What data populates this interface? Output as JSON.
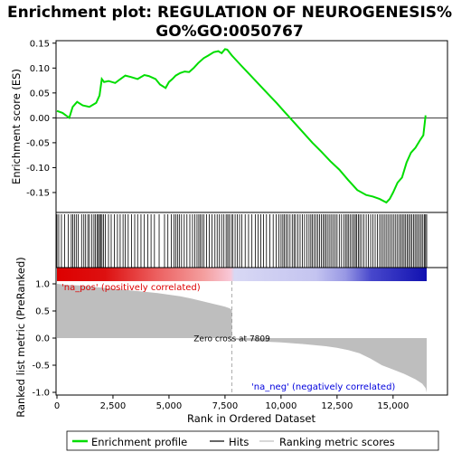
{
  "chart_data": {
    "type": "line",
    "title_line1": "Enrichment plot: REGULATION OF NEUROGENESIS%",
    "title_line2": "GO%GO:0050767",
    "top_panel": {
      "ylabel": "Enrichment score (ES)",
      "ylim": [
        -0.19,
        0.155
      ],
      "yticks": [
        -0.15,
        -0.1,
        -0.05,
        0.0,
        0.05,
        0.1,
        0.15
      ],
      "ytick_labels": [
        "-0.15",
        "-0.10",
        "-0.05",
        "0.00",
        "0.05",
        "0.10",
        "0.15"
      ],
      "line_color": "#00dd00",
      "es_profile": {
        "x": [
          0,
          250,
          550,
          700,
          900,
          1150,
          1450,
          1750,
          1900,
          2000,
          2100,
          2300,
          2600,
          2800,
          3050,
          3300,
          3600,
          3900,
          4100,
          4400,
          4600,
          4850,
          5000,
          5150,
          5300,
          5500,
          5700,
          5900,
          6100,
          6300,
          6550,
          6750,
          7000,
          7200,
          7350,
          7500,
          7600,
          7809,
          8200,
          8600,
          9000,
          9400,
          9800,
          10200,
          10600,
          11000,
          11400,
          11800,
          12200,
          12600,
          13000,
          13400,
          13800,
          14100,
          14400,
          14700,
          14850,
          15000,
          15200,
          15400,
          15600,
          15800,
          16000,
          16200,
          16350,
          16450
        ],
        "y": [
          0.014,
          0.01,
          0.0,
          0.022,
          0.032,
          0.025,
          0.022,
          0.03,
          0.045,
          0.078,
          0.072,
          0.074,
          0.07,
          0.077,
          0.085,
          0.082,
          0.078,
          0.086,
          0.084,
          0.078,
          0.067,
          0.06,
          0.072,
          0.078,
          0.085,
          0.09,
          0.093,
          0.092,
          0.1,
          0.11,
          0.12,
          0.125,
          0.132,
          0.134,
          0.13,
          0.138,
          0.137,
          0.125,
          0.106,
          0.087,
          0.068,
          0.049,
          0.03,
          0.01,
          -0.01,
          -0.03,
          -0.05,
          -0.068,
          -0.087,
          -0.104,
          -0.125,
          -0.145,
          -0.155,
          -0.158,
          -0.163,
          -0.17,
          -0.163,
          -0.15,
          -0.13,
          -0.12,
          -0.09,
          -0.07,
          -0.06,
          -0.045,
          -0.035,
          0.005
        ]
      }
    },
    "hits": [
      0,
      80,
      200,
      340,
      500,
      640,
      710,
      780,
      860,
      950,
      1100,
      1200,
      1280,
      1380,
      1450,
      1560,
      1650,
      1720,
      1790,
      1850,
      1900,
      1950,
      2010,
      2080,
      2160,
      2300,
      2420,
      2560,
      2700,
      2820,
      2950,
      3050,
      3180,
      3330,
      3470,
      3600,
      3750,
      3900,
      4050,
      4200,
      4350,
      4560,
      4800,
      4950,
      5100,
      5220,
      5300,
      5380,
      5460,
      5560,
      5680,
      5800,
      5930,
      6050,
      6150,
      6250,
      6330,
      6400,
      6470,
      6560,
      6680,
      6800,
      6920,
      7050,
      7150,
      7250,
      7350,
      7450,
      7550,
      7620,
      7680,
      7780,
      7850,
      7950,
      8050,
      8150,
      8250,
      8400,
      8550,
      8700,
      8850,
      8980,
      9100,
      9220,
      9350,
      9500,
      9650,
      9780,
      9900,
      10000,
      10080,
      10150,
      10230,
      10300,
      10400,
      10500,
      10580,
      10650,
      10750,
      10850,
      10950,
      11050,
      11150,
      11250,
      11330,
      11400,
      11480,
      11560,
      11640,
      11720,
      11800,
      11880,
      11950,
      12020,
      12100,
      12180,
      12260,
      12340,
      12420,
      12500,
      12600,
      12700,
      12800,
      12880,
      12950,
      13020,
      13100,
      13180,
      13250,
      13320,
      13380,
      13450,
      13520,
      13600,
      13700,
      13800,
      13900,
      14000,
      14100,
      14200,
      14300,
      14400,
      14480,
      14560,
      14640,
      14720,
      14800,
      14880,
      14960,
      15040,
      15120,
      15200,
      15280,
      15350,
      15420,
      15490,
      15560,
      15630,
      15700,
      15770,
      15840,
      15910,
      15980,
      16050,
      16120,
      16190,
      16260,
      16330,
      16400,
      16450,
      16500
    ],
    "ranked_metric": {
      "ylabel": "Ranked list metric (PreRanked)",
      "ylim": [
        -1.05,
        1.05
      ],
      "yticks": [
        -1.0,
        -0.5,
        0.0,
        0.5,
        1.0
      ],
      "ytick_labels": [
        "-1.0",
        "-0.5",
        "0.0",
        "0.5",
        "1.0"
      ],
      "fill_color": "#bebebe",
      "x": [
        0,
        500,
        1000,
        1500,
        2000,
        2500,
        3000,
        3500,
        4000,
        4500,
        5000,
        5500,
        6000,
        6500,
        7000,
        7300,
        7500,
        7700,
        7809,
        7810,
        8000,
        9000,
        10000,
        11000,
        12000,
        12500,
        13000,
        13500,
        14000,
        14500,
        15000,
        15500,
        16000,
        16300,
        16450,
        16500
      ],
      "values": [
        1.0,
        0.98,
        0.97,
        0.95,
        0.93,
        0.91,
        0.89,
        0.87,
        0.85,
        0.83,
        0.8,
        0.77,
        0.73,
        0.68,
        0.63,
        0.6,
        0.58,
        0.55,
        0.52,
        0.0,
        -0.03,
        -0.06,
        -0.08,
        -0.11,
        -0.15,
        -0.18,
        -0.22,
        -0.28,
        -0.38,
        -0.5,
        -0.58,
        -0.66,
        -0.76,
        -0.84,
        -0.92,
        -1.0
      ]
    },
    "zero_cross_label": "Zero cross at 7809",
    "zero_cross_x": 7809,
    "pos_label": "'na_pos' (positively correlated)",
    "neg_label": "'na_neg' (negatively correlated)",
    "pos_label_color": "#dd0000",
    "neg_label_color": "#0000dd",
    "xlabel": "Rank in Ordered Dataset",
    "xlim": [
      0,
      16500
    ],
    "xticks": [
      0,
      2500,
      5000,
      7500,
      10000,
      12500,
      15000
    ],
    "xtick_labels": [
      "0",
      "2,500",
      "5,000",
      "7,500",
      "10,000",
      "12,500",
      "15,000"
    ],
    "legend": {
      "items": [
        "Enrichment profile",
        "Hits",
        "Ranking metric scores"
      ],
      "colors": [
        "#00dd00",
        "#000000",
        "#bebebe"
      ]
    }
  }
}
